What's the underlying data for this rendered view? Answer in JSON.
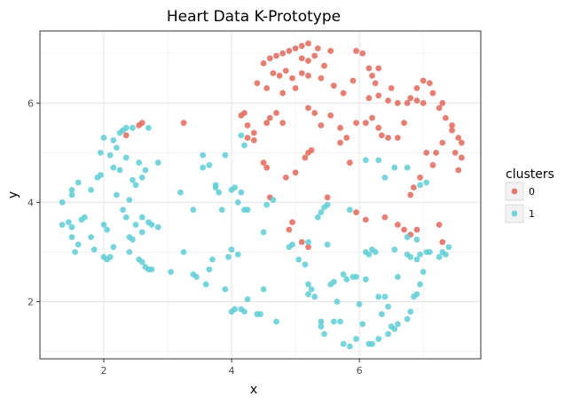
{
  "chart_data": {
    "type": "scatter",
    "title": "Heart Data K-Prototype",
    "xlabel": "x",
    "ylabel": "y",
    "xlim": [
      1.0,
      7.9
    ],
    "ylim": [
      0.85,
      7.45
    ],
    "x_ticks": [
      2,
      4,
      6
    ],
    "y_ticks": [
      2,
      4,
      6
    ],
    "x_tick_labels": [
      "2",
      "4",
      "6"
    ],
    "y_tick_labels": [
      "2",
      "4",
      "6"
    ],
    "grid": true,
    "legend": {
      "title": "clusters",
      "position": "right"
    },
    "series": [
      {
        "name": "0",
        "color": "#E2695B",
        "points": [
          [
            4.5,
            6.8
          ],
          [
            4.6,
            6.9
          ],
          [
            4.7,
            6.95
          ],
          [
            4.8,
            7.0
          ],
          [
            4.9,
            7.05
          ],
          [
            5.0,
            7.1
          ],
          [
            5.1,
            7.15
          ],
          [
            5.2,
            7.2
          ],
          [
            5.35,
            7.1
          ],
          [
            5.55,
            7.05
          ],
          [
            5.95,
            7.05
          ],
          [
            6.05,
            7.0
          ],
          [
            4.65,
            6.6
          ],
          [
            4.75,
            6.55
          ],
          [
            4.85,
            6.65
          ],
          [
            4.95,
            6.5
          ],
          [
            5.1,
            6.9
          ],
          [
            5.2,
            6.85
          ],
          [
            5.3,
            6.95
          ],
          [
            5.45,
            6.75
          ],
          [
            4.4,
            6.4
          ],
          [
            4.55,
            6.3
          ],
          [
            4.8,
            6.2
          ],
          [
            5.0,
            6.3
          ],
          [
            5.1,
            6.6
          ],
          [
            5.2,
            6.55
          ],
          [
            5.4,
            6.5
          ],
          [
            5.6,
            6.35
          ],
          [
            5.75,
            6.2
          ],
          [
            5.9,
            6.45
          ],
          [
            6.15,
            6.7
          ],
          [
            6.3,
            6.7
          ],
          [
            6.2,
            6.55
          ],
          [
            6.25,
            6.4
          ],
          [
            6.3,
            6.15
          ],
          [
            6.15,
            6.1
          ],
          [
            4.2,
            5.8
          ],
          [
            4.15,
            5.75
          ],
          [
            4.25,
            5.55
          ],
          [
            4.35,
            5.4
          ],
          [
            4.6,
            5.7
          ],
          [
            4.7,
            5.8
          ],
          [
            4.55,
            5.6
          ],
          [
            4.8,
            5.6
          ],
          [
            5.2,
            5.9
          ],
          [
            5.3,
            5.8
          ],
          [
            5.4,
            5.55
          ],
          [
            5.55,
            5.75
          ],
          [
            5.7,
            5.5
          ],
          [
            5.8,
            5.3
          ],
          [
            5.95,
            5.6
          ],
          [
            6.1,
            5.6
          ],
          [
            6.2,
            5.7
          ],
          [
            6.3,
            5.5
          ],
          [
            6.35,
            5.35
          ],
          [
            6.45,
            5.3
          ],
          [
            6.6,
            5.3
          ],
          [
            6.7,
            5.6
          ],
          [
            6.8,
            6.1
          ],
          [
            6.9,
            6.3
          ],
          [
            7.0,
            6.45
          ],
          [
            7.1,
            6.4
          ],
          [
            7.15,
            6.2
          ],
          [
            7.25,
            5.9
          ],
          [
            7.35,
            5.7
          ],
          [
            7.45,
            5.55
          ],
          [
            7.55,
            5.3
          ],
          [
            7.6,
            5.2
          ],
          [
            7.5,
            5.0
          ],
          [
            7.6,
            4.9
          ],
          [
            7.55,
            4.65
          ],
          [
            7.3,
            5.2
          ],
          [
            7.2,
            5.0
          ],
          [
            7.15,
            4.75
          ],
          [
            7.05,
            5.0
          ],
          [
            6.95,
            4.5
          ],
          [
            6.85,
            4.3
          ],
          [
            6.8,
            4.15
          ],
          [
            6.9,
            6.05
          ],
          [
            6.75,
            6.0
          ],
          [
            6.6,
            6.0
          ],
          [
            6.5,
            6.3
          ],
          [
            6.45,
            6.05
          ],
          [
            7.0,
            6.0
          ],
          [
            7.3,
            6.0
          ],
          [
            7.45,
            5.45
          ],
          [
            4.5,
            4.8
          ],
          [
            4.55,
            4.7
          ],
          [
            4.6,
            4.1
          ],
          [
            4.85,
            4.5
          ],
          [
            5.0,
            4.6
          ],
          [
            5.15,
            4.9
          ],
          [
            5.2,
            5.0
          ],
          [
            5.25,
            5.05
          ],
          [
            5.5,
            4.1
          ],
          [
            5.7,
            5.2
          ],
          [
            5.85,
            4.8
          ],
          [
            5.95,
            3.8
          ],
          [
            6.1,
            3.65
          ],
          [
            6.4,
            3.7
          ],
          [
            6.6,
            3.55
          ],
          [
            6.7,
            3.45
          ],
          [
            6.8,
            3.35
          ],
          [
            6.9,
            3.45
          ],
          [
            7.25,
            3.55
          ],
          [
            7.3,
            3.2
          ],
          [
            4.9,
            3.45
          ],
          [
            4.95,
            3.6
          ],
          [
            5.1,
            3.2
          ],
          [
            5.2,
            3.1
          ],
          [
            4.25,
            5.3
          ],
          [
            4.35,
            5.25
          ],
          [
            2.55,
            5.55
          ],
          [
            2.6,
            5.6
          ],
          [
            2.35,
            5.35
          ],
          [
            3.25,
            5.6
          ]
        ]
      },
      {
        "name": "1",
        "color": "#5FCCD5",
        "points": [
          [
            1.35,
            4.0
          ],
          [
            1.35,
            3.55
          ],
          [
            1.45,
            3.6
          ],
          [
            1.5,
            3.5
          ],
          [
            1.5,
            4.25
          ],
          [
            1.5,
            4.15
          ],
          [
            1.6,
            4.4
          ],
          [
            1.65,
            3.65
          ],
          [
            1.7,
            3.7
          ],
          [
            1.5,
            3.3
          ],
          [
            1.6,
            3.15
          ],
          [
            1.55,
            3.0
          ],
          [
            1.8,
            3.3
          ],
          [
            1.85,
            3.05
          ],
          [
            1.8,
            4.25
          ],
          [
            1.9,
            4.5
          ],
          [
            1.95,
            4.55
          ],
          [
            1.95,
            5.0
          ],
          [
            2.0,
            5.3
          ],
          [
            2.1,
            4.95
          ],
          [
            2.15,
            5.25
          ],
          [
            2.2,
            5.1
          ],
          [
            2.15,
            4.7
          ],
          [
            2.25,
            5.4
          ],
          [
            2.3,
            5.45
          ],
          [
            2.35,
            5.5
          ],
          [
            2.45,
            5.5
          ],
          [
            2.2,
            4.15
          ],
          [
            2.25,
            4.65
          ],
          [
            2.3,
            3.85
          ],
          [
            2.35,
            4.9
          ],
          [
            2.45,
            4.45
          ],
          [
            2.5,
            4.35
          ],
          [
            2.55,
            4.8
          ],
          [
            2.6,
            4.5
          ],
          [
            2.7,
            5.5
          ],
          [
            2.85,
            4.8
          ],
          [
            2.05,
            3.45
          ],
          [
            2.0,
            3.55
          ],
          [
            2.0,
            2.9
          ],
          [
            2.05,
            2.85
          ],
          [
            2.1,
            2.9
          ],
          [
            2.15,
            3.1
          ],
          [
            2.35,
            3.7
          ],
          [
            2.4,
            3.3
          ],
          [
            2.45,
            3.25
          ],
          [
            2.4,
            3.0
          ],
          [
            2.5,
            3.55
          ],
          [
            2.55,
            2.85
          ],
          [
            2.6,
            2.8
          ],
          [
            2.65,
            2.7
          ],
          [
            2.7,
            2.65
          ],
          [
            2.75,
            2.65
          ],
          [
            2.6,
            3.4
          ],
          [
            2.7,
            3.6
          ],
          [
            2.75,
            3.55
          ],
          [
            2.85,
            3.5
          ],
          [
            2.6,
            3.7
          ],
          [
            2.65,
            4.65
          ],
          [
            2.4,
            4.05
          ],
          [
            3.05,
            2.6
          ],
          [
            3.2,
            4.2
          ],
          [
            3.25,
            3.0
          ],
          [
            3.4,
            3.85
          ],
          [
            3.4,
            2.55
          ],
          [
            3.45,
            2.5
          ],
          [
            3.55,
            4.95
          ],
          [
            3.55,
            4.7
          ],
          [
            3.6,
            2.35
          ],
          [
            3.65,
            4.75
          ],
          [
            3.65,
            2.65
          ],
          [
            3.7,
            2.85
          ],
          [
            3.75,
            4.35
          ],
          [
            3.75,
            4.3
          ],
          [
            3.8,
            4.2
          ],
          [
            3.85,
            3.85
          ],
          [
            3.9,
            4.95
          ],
          [
            3.9,
            2.25
          ],
          [
            3.95,
            2.9
          ],
          [
            4.0,
            4.25
          ],
          [
            4.0,
            3.05
          ],
          [
            4.05,
            4.3
          ],
          [
            4.1,
            4.0
          ],
          [
            4.1,
            2.95
          ],
          [
            4.15,
            4.2
          ],
          [
            4.2,
            3.85
          ],
          [
            4.25,
            3.85
          ],
          [
            4.15,
            5.35
          ],
          [
            4.2,
            5.15
          ],
          [
            4.0,
            1.8
          ],
          [
            4.05,
            1.85
          ],
          [
            4.15,
            1.85
          ],
          [
            4.2,
            1.8
          ],
          [
            4.25,
            2.05
          ],
          [
            4.4,
            1.75
          ],
          [
            4.45,
            1.75
          ],
          [
            4.5,
            3.4
          ],
          [
            4.5,
            2.25
          ],
          [
            4.55,
            3.95
          ],
          [
            4.65,
            4.05
          ],
          [
            4.7,
            1.6
          ],
          [
            4.9,
            3.1
          ],
          [
            4.95,
            3.15
          ],
          [
            5.05,
            2.85
          ],
          [
            5.15,
            2.75
          ],
          [
            5.2,
            3.2
          ],
          [
            5.2,
            2.35
          ],
          [
            5.25,
            2.25
          ],
          [
            5.2,
            2.15
          ],
          [
            5.3,
            2.1
          ],
          [
            5.35,
            3.7
          ],
          [
            5.4,
            3.8
          ],
          [
            5.45,
            3.9
          ],
          [
            5.5,
            3.95
          ],
          [
            5.5,
            3.15
          ],
          [
            5.55,
            2.35
          ],
          [
            5.6,
            2.4
          ],
          [
            5.65,
            2.0
          ],
          [
            5.4,
            1.6
          ],
          [
            5.4,
            1.5
          ],
          [
            5.45,
            1.35
          ],
          [
            5.6,
            1.6
          ],
          [
            5.7,
            1.6
          ],
          [
            5.75,
            2.55
          ],
          [
            5.8,
            2.45
          ],
          [
            5.85,
            3.85
          ],
          [
            5.9,
            2.5
          ],
          [
            5.95,
            2.5
          ],
          [
            6.0,
            1.95
          ],
          [
            6.05,
            1.55
          ],
          [
            6.1,
            2.45
          ],
          [
            6.15,
            2.95
          ],
          [
            6.2,
            3.05
          ],
          [
            6.25,
            3.0
          ],
          [
            6.3,
            2.1
          ],
          [
            6.35,
            1.75
          ],
          [
            6.4,
            2.1
          ],
          [
            6.45,
            1.9
          ],
          [
            5.75,
            1.15
          ],
          [
            5.85,
            1.1
          ],
          [
            5.95,
            1.25
          ],
          [
            6.15,
            1.15
          ],
          [
            6.2,
            1.15
          ],
          [
            6.3,
            1.25
          ],
          [
            6.45,
            1.35
          ],
          [
            6.5,
            1.5
          ],
          [
            6.55,
            1.45
          ],
          [
            6.6,
            1.55
          ],
          [
            6.75,
            1.65
          ],
          [
            6.8,
            1.8
          ],
          [
            6.85,
            2.1
          ],
          [
            6.9,
            2.15
          ],
          [
            6.95,
            2.35
          ],
          [
            7.0,
            2.6
          ],
          [
            6.8,
            2.9
          ],
          [
            6.9,
            2.85
          ],
          [
            6.95,
            2.95
          ],
          [
            7.05,
            3.0
          ],
          [
            6.75,
            3.3
          ],
          [
            6.9,
            3.25
          ],
          [
            7.1,
            3.0
          ],
          [
            7.35,
            2.95
          ],
          [
            7.4,
            3.1
          ],
          [
            7.3,
            3.0
          ],
          [
            7.25,
            2.9
          ],
          [
            6.55,
            3.05
          ],
          [
            6.75,
            2.95
          ],
          [
            6.6,
            2.5
          ],
          [
            6.4,
            4.5
          ],
          [
            6.55,
            4.7
          ],
          [
            6.75,
            4.7
          ],
          [
            6.95,
            4.35
          ],
          [
            7.05,
            4.4
          ],
          [
            6.1,
            4.85
          ],
          [
            6.1,
            3.0
          ],
          [
            6.3,
            4.85
          ]
        ]
      }
    ]
  }
}
